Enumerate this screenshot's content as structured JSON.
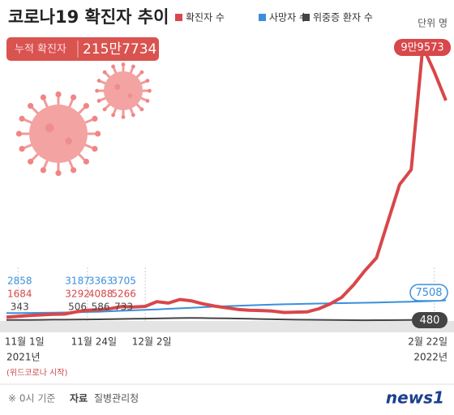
{
  "chart_data": {
    "type": "line",
    "title": "코로나19 확진자 추이",
    "summary": {
      "label": "누적 확진자",
      "value": "215만7734"
    },
    "unit_label": "단위 명",
    "categories": [
      null,
      "11월 1일",
      null,
      null,
      null,
      null,
      null,
      "11월 24일",
      null,
      null,
      null,
      null,
      "12월 2일",
      null,
      null,
      null,
      null,
      null,
      null,
      null,
      null,
      null,
      null,
      null,
      null,
      null,
      null,
      null,
      null,
      null,
      null,
      null,
      null,
      null,
      null,
      null,
      null,
      "2월 22일",
      null
    ],
    "x_annotations": [
      "2021년",
      "(위드코로나 시작)",
      "2022년"
    ],
    "ylim": [
      0,
      100000
    ],
    "series": [
      {
        "name": "확진자 수",
        "color": "#d8474a",
        "values": [
          1400,
          1684,
          2000,
          2200,
          2400,
          2500,
          3292,
          3900,
          4088,
          4500,
          5266,
          5100,
          5300,
          7000,
          6500,
          7800,
          7300,
          6200,
          5400,
          4800,
          4200,
          3900,
          3800,
          3600,
          3100,
          3200,
          3300,
          4400,
          6200,
          8600,
          13000,
          18300,
          22900,
          36300,
          49500,
          54900,
          99573,
          90400,
          80000
        ],
        "value_labels": [
          null,
          null,
          null,
          null,
          null,
          null,
          null,
          null,
          null,
          null,
          null,
          null,
          null,
          null,
          null,
          null,
          null,
          null,
          null,
          null,
          null,
          null,
          null,
          null,
          null,
          null,
          null,
          null,
          null,
          null,
          null,
          null,
          null,
          null,
          null,
          null,
          "9만9573",
          null,
          null
        ]
      },
      {
        "name": "사망자 수",
        "color": "#3a8fdc",
        "values": [
          2840,
          2858,
          2900,
          2960,
          3020,
          3100,
          3187,
          3270,
          3363,
          3530,
          3705,
          3850,
          4020,
          4200,
          4400,
          4600,
          4800,
          5000,
          5200,
          5350,
          5500,
          5650,
          5800,
          5950,
          6050,
          6150,
          6250,
          6330,
          6400,
          6480,
          6550,
          6620,
          6700,
          6800,
          6900,
          7000,
          7140,
          7300,
          7508
        ]
      },
      {
        "name": "위중증 환자 수",
        "color": "#444444",
        "values": [
          340,
          343,
          380,
          420,
          460,
          480,
          506,
          550,
          586,
          650,
          733,
          800,
          850,
          900,
          1000,
          1050,
          1080,
          1050,
          1000,
          950,
          880,
          800,
          700,
          620,
          550,
          480,
          430,
          400,
          380,
          330,
          290,
          270,
          280,
          300,
          330,
          380,
          430,
          460,
          480
        ]
      }
    ],
    "note": "※ 0시 기준",
    "source_label": "자료",
    "source": "질병관리청",
    "brand": "news1"
  }
}
